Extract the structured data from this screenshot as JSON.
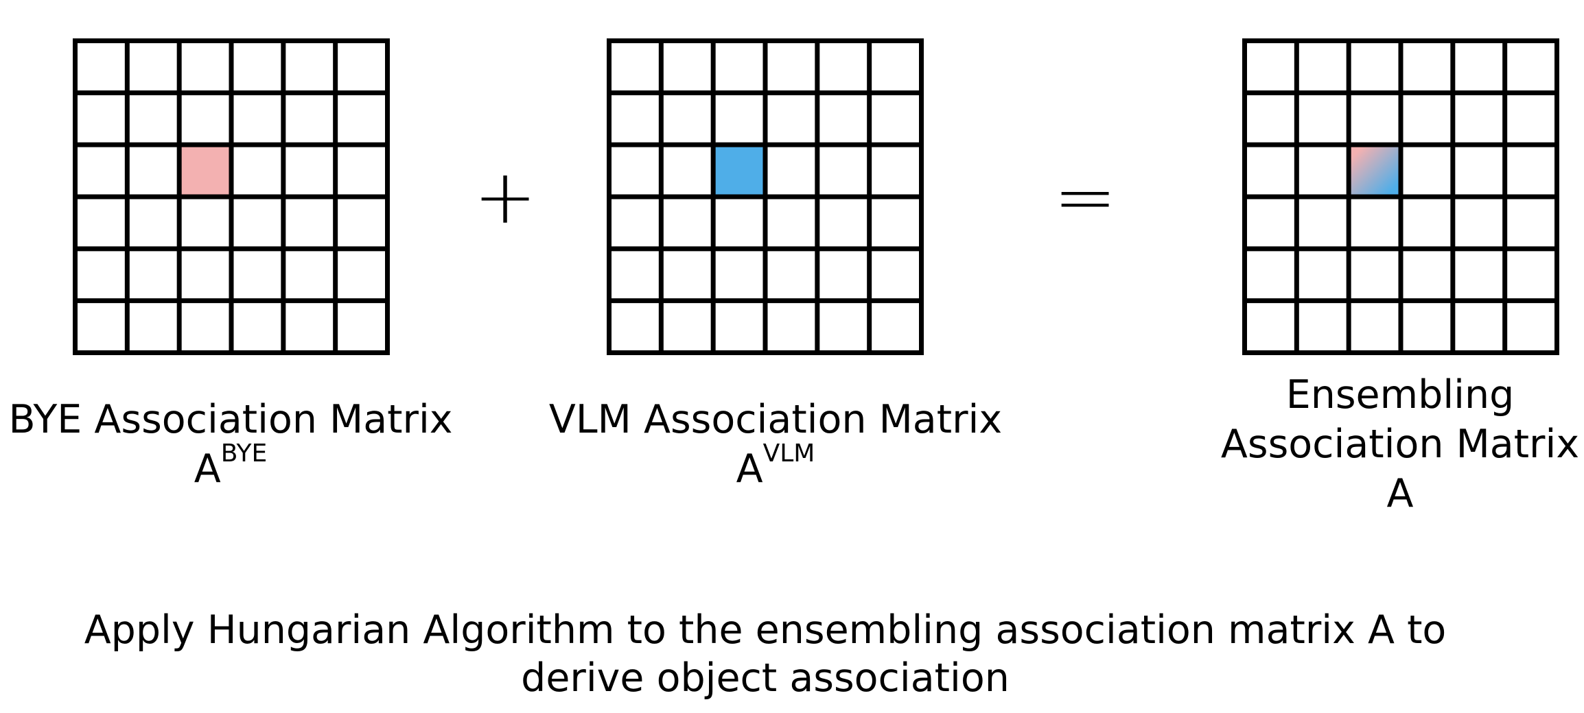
{
  "figure": {
    "operators": {
      "plus": "+",
      "equals": "="
    },
    "matrices": [
      {
        "id": "bye",
        "grid_size": 6,
        "highlight_row": 2,
        "highlight_col": 2,
        "highlight_color": "#f3b1b1",
        "name": "BYE Association Matrix",
        "symbol": "A",
        "superscript": "BYE"
      },
      {
        "id": "vlm",
        "grid_size": 6,
        "highlight_row": 2,
        "highlight_col": 2,
        "highlight_color": "#4faee8",
        "name": "VLM Association Matrix",
        "symbol": "A",
        "superscript": "VLM"
      },
      {
        "id": "ens",
        "grid_size": 6,
        "highlight_row": 2,
        "highlight_col": 2,
        "highlight_gradient": [
          "#f3b1b1",
          "#4faee8"
        ],
        "name_lines": [
          "Ensembling",
          "Association Matrix"
        ],
        "symbol": "A"
      }
    ],
    "footer_lines": [
      "Apply Hungarian Algorithm to the ensembling association matrix A to",
      "derive object association"
    ]
  }
}
